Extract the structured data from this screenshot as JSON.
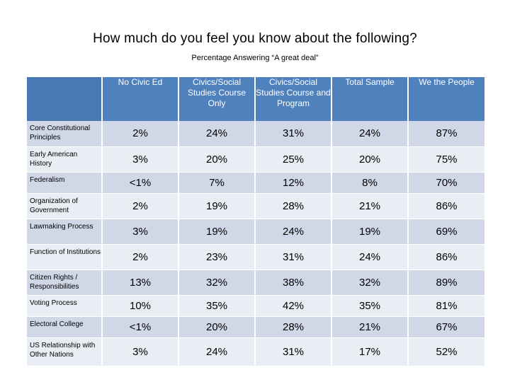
{
  "title": "How much do you feel you know about the following?",
  "subtitle": "Percentage Answering “A great deal”",
  "colors": {
    "header_blue": "#4f81bd",
    "row_dark": "#d0d8e8",
    "row_light": "#e9edf4"
  },
  "table": {
    "columns": [
      "No Civic Ed",
      "Civics/Social Studies Course Only",
      "Civics/Social Studies Course and Program",
      "Total Sample",
      "We the People"
    ],
    "rows": [
      {
        "label": "Core Constitutional Principles",
        "values": [
          "2%",
          "24%",
          "31%",
          "24%",
          "87%"
        ]
      },
      {
        "label": "Early American History",
        "values": [
          "3%",
          "20%",
          "25%",
          "20%",
          "75%"
        ]
      },
      {
        "label": "Federalism",
        "values": [
          "<1%",
          "7%",
          "12%",
          "8%",
          "70%"
        ]
      },
      {
        "label": "Organization of Government",
        "values": [
          "2%",
          "19%",
          "28%",
          "21%",
          "86%"
        ]
      },
      {
        "label": "Lawmaking Process",
        "values": [
          "3%",
          "19%",
          "24%",
          "19%",
          "69%"
        ]
      },
      {
        "label": "Function of Institutions",
        "values": [
          "2%",
          "23%",
          "31%",
          "24%",
          "86%"
        ]
      },
      {
        "label": "Citizen Rights / Responsibilities",
        "values": [
          "13%",
          "32%",
          "38%",
          "32%",
          "89%"
        ]
      },
      {
        "label": "Voting Process",
        "values": [
          "10%",
          "35%",
          "42%",
          "35%",
          "81%"
        ]
      },
      {
        "label": "Electoral College",
        "values": [
          "<1%",
          "20%",
          "28%",
          "21%",
          "67%"
        ]
      },
      {
        "label": "US Relationship with Other Nations",
        "values": [
          "3%",
          "24%",
          "31%",
          "17%",
          "52%"
        ]
      }
    ]
  }
}
